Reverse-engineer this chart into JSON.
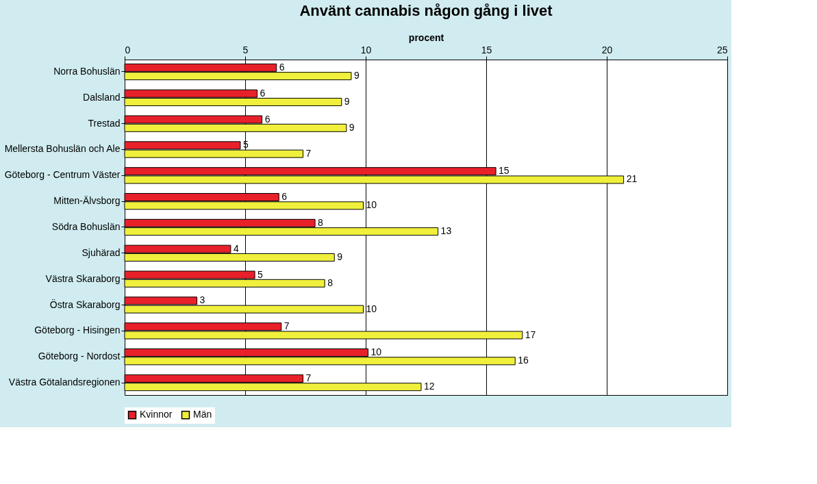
{
  "chart_data": {
    "type": "bar",
    "orientation": "horizontal",
    "title": "Använt cannabis någon gång i livet",
    "xlabel": "procent",
    "categories": [
      "Norra Bohuslän",
      "Dalsland",
      "Trestad",
      "Mellersta Bohuslän och Ale",
      "Göteborg - Centrum Väster",
      "Mitten-Älvsborg",
      "Södra Bohuslän",
      "Sjuhärad",
      "Västra Skaraborg",
      "Östra Skaraborg",
      "Göteborg - Hisingen",
      "Göteborg - Nordost",
      "Västra Götalandsregionen"
    ],
    "series": [
      {
        "name": "Kvinnor",
        "color": "#e8202a",
        "values": [
          6.3,
          5.5,
          5.7,
          4.8,
          15.4,
          6.4,
          7.9,
          4.4,
          5.4,
          3.0,
          6.5,
          10.1,
          7.4
        ],
        "value_labels": [
          "6",
          "6",
          "6",
          "5",
          "15",
          "6",
          "8",
          "4",
          "5",
          "3",
          "7",
          "10",
          "7"
        ]
      },
      {
        "name": "Män",
        "color": "#f0f03c",
        "values": [
          9.4,
          9.0,
          9.2,
          7.4,
          20.7,
          9.9,
          13.0,
          8.7,
          8.3,
          9.9,
          16.5,
          16.2,
          12.3
        ],
        "value_labels": [
          "9",
          "9",
          "9",
          "7",
          "21",
          "10",
          "13",
          "9",
          "8",
          "10",
          "17",
          "16",
          "12"
        ]
      }
    ],
    "xlim": [
      0,
      25
    ],
    "xticks": [
      0,
      5,
      10,
      15,
      20,
      25
    ],
    "grid": "x",
    "legend": "bottom"
  }
}
